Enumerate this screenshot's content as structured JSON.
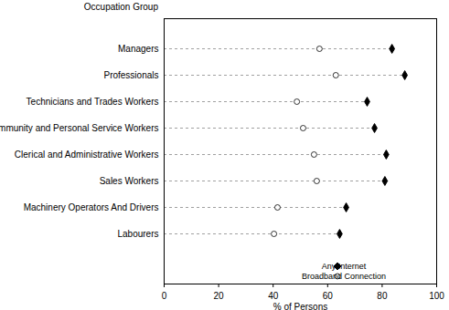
{
  "chart_data": {
    "type": "dot",
    "ylabel": "Occupation Group",
    "xlabel": "% of Persons",
    "orientation": "horizontal",
    "categories": [
      "Managers",
      "Professionals",
      "Technicians and Trades Workers",
      "Community and Personal Service Workers",
      "Clerical and Administrative Workers",
      "Sales Workers",
      "Machinery Operators And Drivers",
      "Labourers"
    ],
    "series": [
      {
        "name": "Any Internet",
        "color": "#000000",
        "marker": "diamond",
        "values": [
          83.6,
          88.3,
          74.5,
          77.2,
          81.5,
          81,
          66.8,
          64.4
        ]
      },
      {
        "name": "Broadband Connection",
        "color": "#000000",
        "marker": "circle-open",
        "values": [
          57,
          63,
          48.7,
          51,
          55,
          56,
          41.6,
          40.3
        ]
      }
    ],
    "xlim": [
      0,
      100
    ],
    "xticks": [
      0,
      20,
      40,
      60,
      80,
      100
    ],
    "legend": "bottom-right",
    "grid": false
  }
}
